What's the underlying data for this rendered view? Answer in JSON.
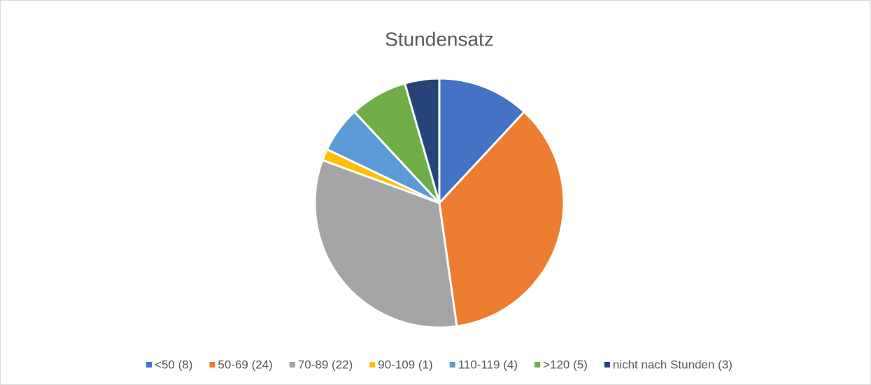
{
  "chart_data": {
    "type": "pie",
    "title": "Stundensatz",
    "categories": [
      "<50 (8)",
      "50-69 (24)",
      "70-89 (22)",
      "90-109 (1)",
      "110-119 (4)",
      ">120 (5)",
      "nicht nach Stunden (3)"
    ],
    "values": [
      8,
      24,
      22,
      1,
      4,
      5,
      3
    ],
    "colors": [
      "#4472c4",
      "#ed7d31",
      "#a5a5a5",
      "#ffc000",
      "#5b9bd5",
      "#70ad47",
      "#264478"
    ],
    "legend": "bottom"
  }
}
